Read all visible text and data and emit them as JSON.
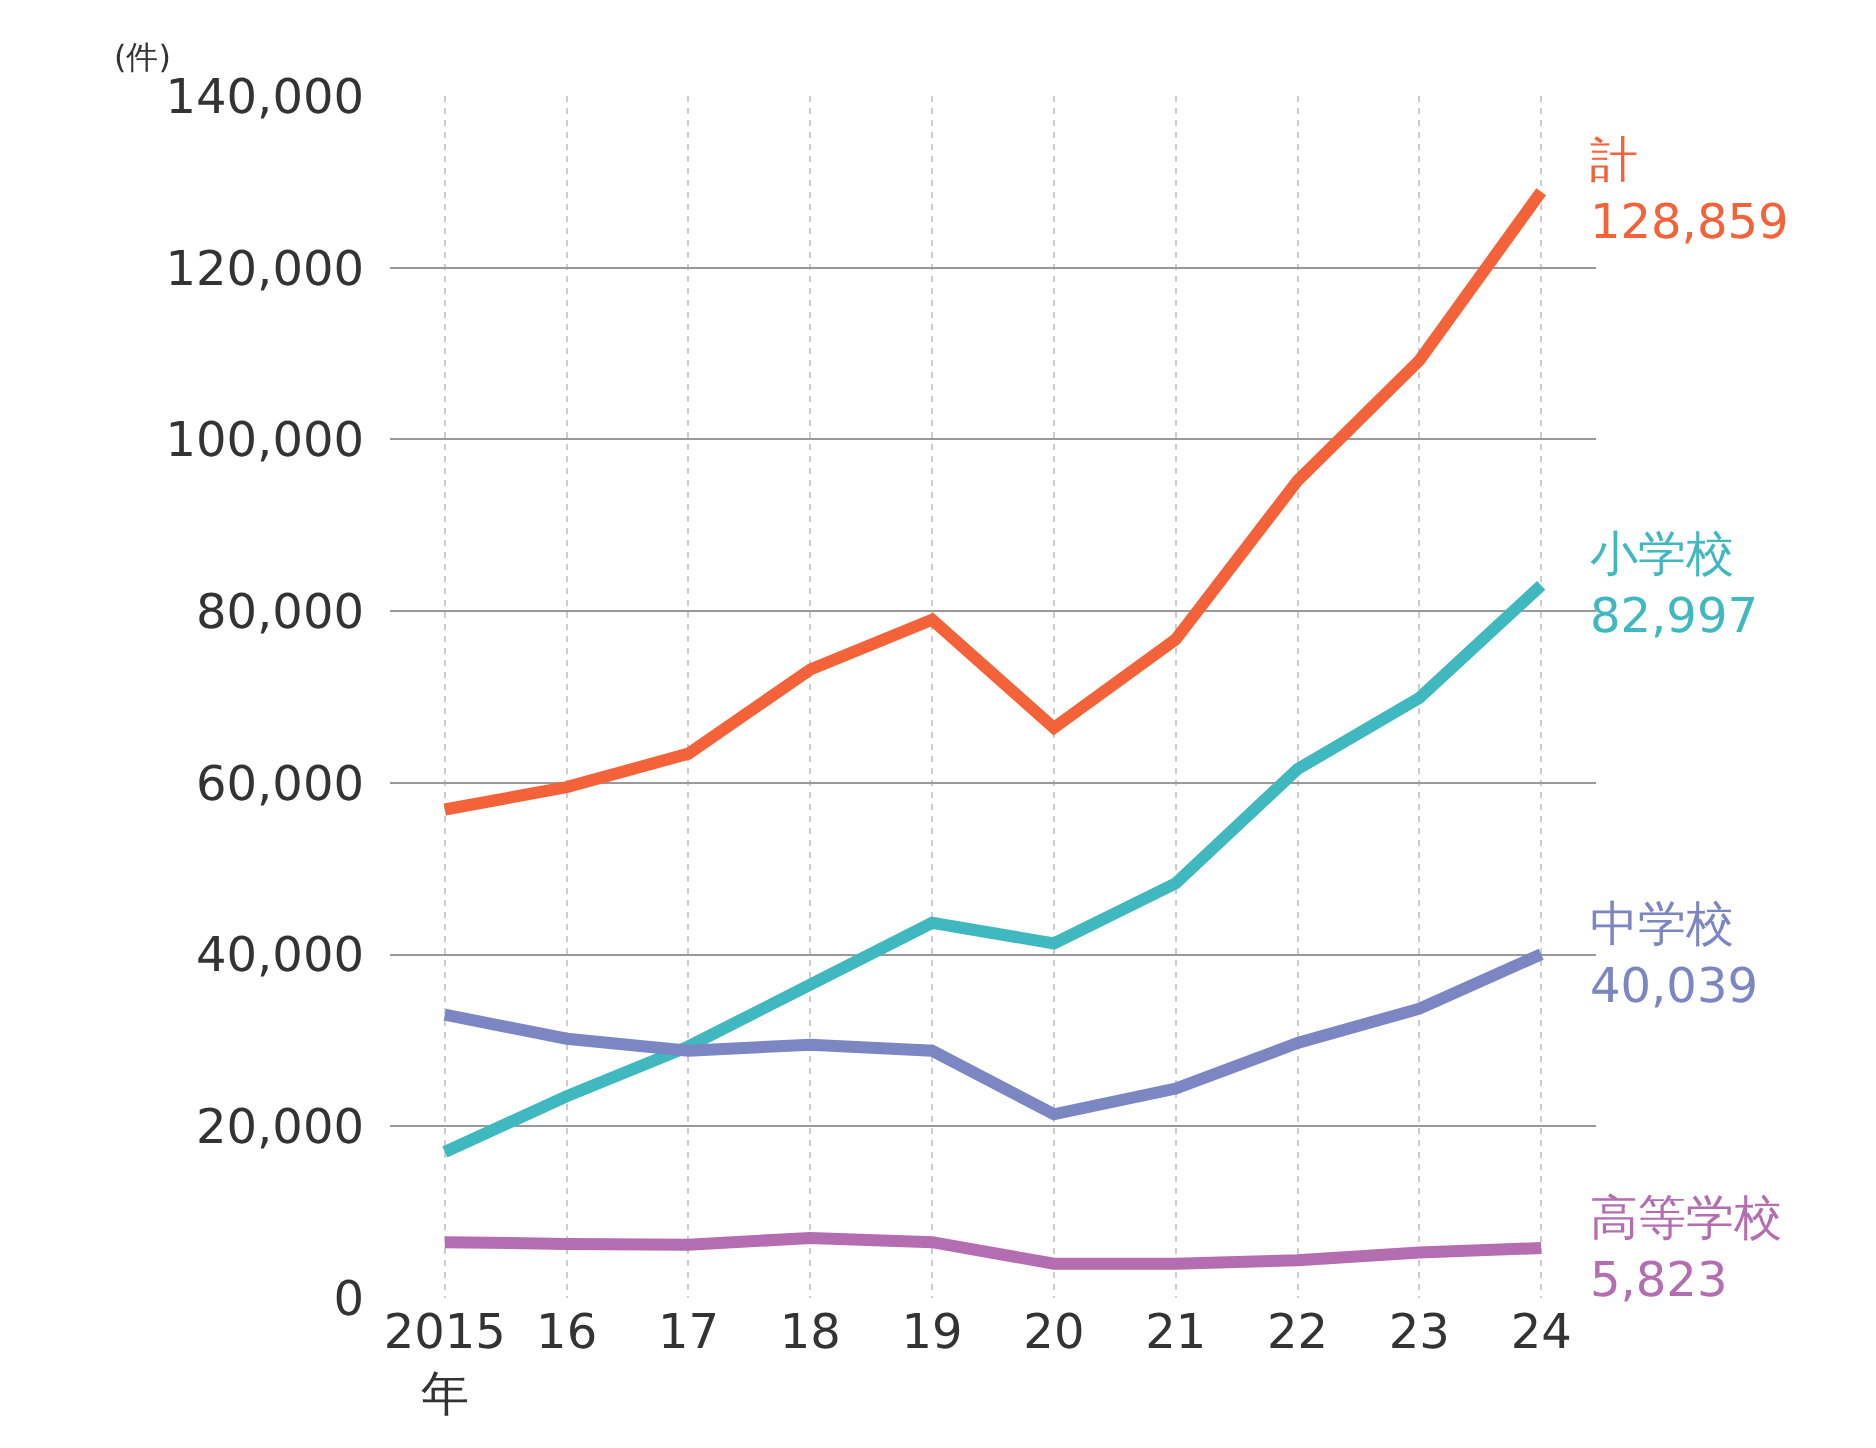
{
  "chart_data": {
    "type": "line",
    "ylabel": "(件)",
    "categories": [
      "2015\n年",
      "16",
      "17",
      "18",
      "19",
      "20",
      "21",
      "22",
      "23",
      "24"
    ],
    "ylim": [
      0,
      140000
    ],
    "yticks": [
      {
        "value": 0,
        "label": "0"
      },
      {
        "value": 20000,
        "label": "20,000"
      },
      {
        "value": 40000,
        "label": "40,000"
      },
      {
        "value": 60000,
        "label": "60,000"
      },
      {
        "value": 80000,
        "label": "80,000"
      },
      {
        "value": 100000,
        "label": "100,000"
      },
      {
        "value": 120000,
        "label": "120,000"
      },
      {
        "value": 140000,
        "label": "140,000"
      }
    ],
    "grid": true,
    "legend": false,
    "marker": "none",
    "line_style": "solid",
    "series": [
      {
        "name": "計",
        "color": "#f4623a",
        "values": [
          56900,
          59500,
          63400,
          73200,
          79000,
          66400,
          76700,
          95200,
          109200,
          128859
        ],
        "value_labels": [
          null,
          null,
          null,
          null,
          null,
          null,
          null,
          null,
          null,
          "128,859"
        ]
      },
      {
        "name": "小学校",
        "color": "#3fb8c0",
        "values": [
          17000,
          23500,
          29300,
          36500,
          43700,
          41300,
          48300,
          61600,
          69900,
          82997
        ],
        "value_labels": [
          null,
          null,
          null,
          null,
          null,
          null,
          null,
          null,
          null,
          "82,997"
        ]
      },
      {
        "name": "中学校",
        "color": "#7b86c2",
        "values": [
          33000,
          30200,
          28800,
          29500,
          28800,
          21400,
          24400,
          29700,
          33700,
          40039
        ],
        "value_labels": [
          null,
          null,
          null,
          null,
          null,
          null,
          null,
          null,
          null,
          "40,039"
        ]
      },
      {
        "name": "高等学校",
        "color": "#b36db0",
        "values": [
          6500,
          6300,
          6200,
          7000,
          6500,
          4000,
          4000,
          4400,
          5300,
          5823
        ],
        "value_labels": [
          null,
          null,
          null,
          null,
          null,
          null,
          null,
          null,
          null,
          "5,823"
        ]
      }
    ]
  }
}
